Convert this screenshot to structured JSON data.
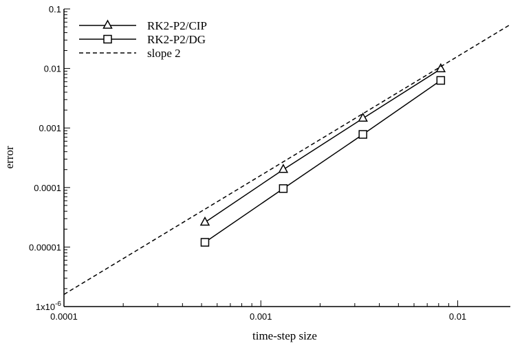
{
  "chart_data": {
    "type": "line",
    "xscale": "log",
    "yscale": "log",
    "xlim": [
      0.0001,
      0.0185
    ],
    "ylim": [
      1e-06,
      0.1
    ],
    "xlabel": "time-step size",
    "ylabel": "error",
    "grid": false,
    "legend_position": "top-left",
    "x_ticks": [
      {
        "value": 0.0001,
        "label": "0.0001"
      },
      {
        "value": 0.001,
        "label": "0.001"
      },
      {
        "value": 0.01,
        "label": "0.01"
      }
    ],
    "y_ticks": [
      {
        "value": 1e-06,
        "label": "1x10",
        "sup": "-6"
      },
      {
        "value": 1e-05,
        "label": "0.00001"
      },
      {
        "value": 0.0001,
        "label": "0.0001"
      },
      {
        "value": 0.001,
        "label": "0.001"
      },
      {
        "value": 0.01,
        "label": "0.01"
      },
      {
        "value": 0.1,
        "label": "0.1"
      }
    ],
    "series": [
      {
        "name": "RK2-P2/CIP",
        "marker": "triangle",
        "line": "solid",
        "x": [
          0.00052,
          0.0013,
          0.0033,
          0.0082
        ],
        "y": [
          2.6e-05,
          0.0002,
          0.00145,
          0.0098
        ]
      },
      {
        "name": "RK2-P2/DG",
        "marker": "square",
        "line": "solid",
        "x": [
          0.00052,
          0.0013,
          0.0033,
          0.0082
        ],
        "y": [
          1.2e-05,
          9.6e-05,
          0.00078,
          0.0063
        ]
      },
      {
        "name": "slope 2",
        "marker": "none",
        "line": "dashed",
        "x": [
          0.0001,
          0.0185
        ],
        "y": [
          1.6e-06,
          0.0547
        ]
      }
    ]
  }
}
